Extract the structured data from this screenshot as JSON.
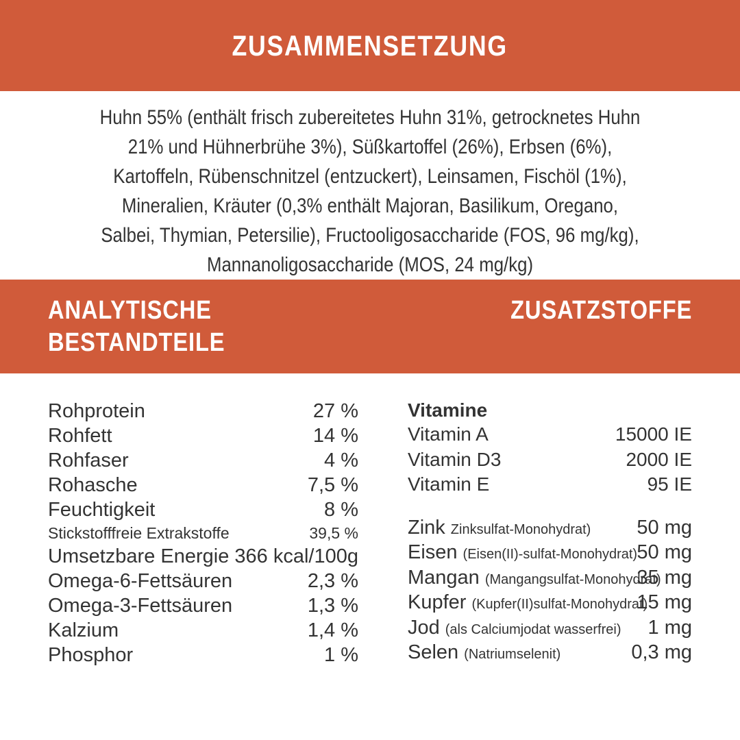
{
  "colors": {
    "accent": "#D05B3A",
    "band_text": "#FFFFFF",
    "text": "#333333",
    "bg": "#FFFFFF"
  },
  "composition": {
    "title": "ZUSAMMENSETZUNG",
    "lines": [
      "Huhn 55% (enthält frisch zubereitetes Huhn 31%, getrocknetes Huhn",
      "21% und Hühnerbrühe 3%), Süßkartoffel (26%), Erbsen (6%),",
      "Kartoffeln, Rübenschnitzel (entzuckert), Leinsamen, Fischöl (1%),",
      "Mineralien, Kräuter (0,3% enthält Majoran, Basilikum, Oregano,",
      "Salbei, Thymian, Petersilie), Fructooligosaccharide (FOS, 96 mg/kg),",
      "Mannanoligosaccharide (MOS, 24 mg/kg)"
    ]
  },
  "analytical": {
    "title_lines": [
      "ANALYTISCHE",
      "BESTANDTEILE"
    ],
    "rows": [
      {
        "label": "Rohprotein",
        "value": "27 %"
      },
      {
        "label": "Rohfett",
        "value": "14 %"
      },
      {
        "label": "Rohfaser",
        "value": "4 %"
      },
      {
        "label": "Rohasche",
        "value": "7,5 %"
      },
      {
        "label": "Feuchtigkeit",
        "value": "8 %"
      },
      {
        "label": "Stickstofffreie Extrakstoffe",
        "value": "39,5 %",
        "small": true
      },
      {
        "label": "Umsetzbare Energie",
        "value": "366 kcal/100g"
      },
      {
        "label": "Omega-6-Fettsäuren",
        "value": "2,3 %"
      },
      {
        "label": "Omega-3-Fettsäuren",
        "value": "1,3 %"
      },
      {
        "label": "Kalzium",
        "value": "1,4 %"
      },
      {
        "label": "Phosphor",
        "value": "1 %"
      }
    ]
  },
  "additives": {
    "title": "ZUSATZSTOFFE",
    "vitamins_header": "Vitamine",
    "vitamins": [
      {
        "label": "Vitamin A",
        "value": "15000 IE"
      },
      {
        "label": "Vitamin D3",
        "value": "2000 IE"
      },
      {
        "label": "Vitamin E",
        "value": "95 IE"
      }
    ],
    "minerals": [
      {
        "label": "Zink",
        "note": "Zinksulfat-Monohydrat)",
        "value": "50 mg"
      },
      {
        "label": "Eisen",
        "note": "(Eisen(II)-sulfat-Monohydrat)",
        "value": "50 mg"
      },
      {
        "label": "Mangan",
        "note": "(Mangangsulfat-Monohydrat)",
        "value": "35 mg"
      },
      {
        "label": "Kupfer",
        "note": "(Kupfer(II)sulfat-Monohydrat)",
        "value": "15 mg"
      },
      {
        "label": "Jod",
        "note": "(als Calciumjodat wasserfrei)",
        "value": "1 mg"
      },
      {
        "label": "Selen",
        "note": "(Natriumselenit)",
        "value": "0,3 mg"
      }
    ]
  }
}
